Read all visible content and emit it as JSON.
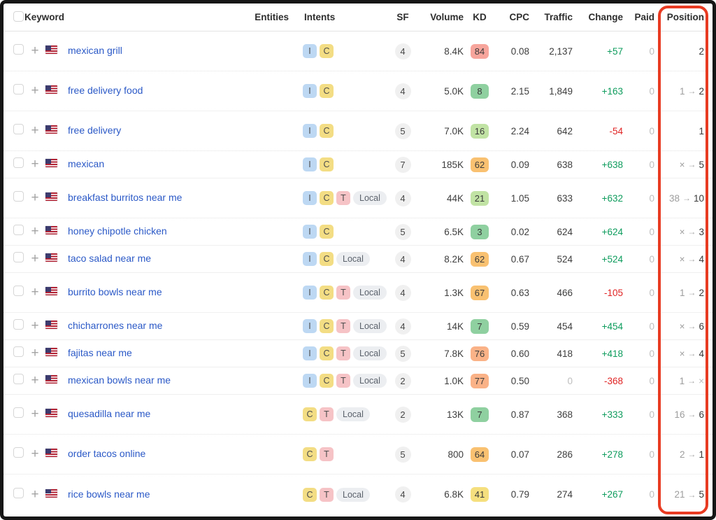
{
  "table": {
    "columns": {
      "keyword": "Keyword",
      "entities": "Entities",
      "intents": "Intents",
      "sf": "SF",
      "volume": "Volume",
      "kd": "KD",
      "cpc": "CPC",
      "traffic": "Traffic",
      "change": "Change",
      "paid": "Paid",
      "position": "Position"
    },
    "intent_classes": {
      "I": "intent-i",
      "C": "intent-c",
      "T": "intent-t",
      "Local": "intent-local"
    },
    "rows": [
      {
        "keyword": "mexican grill",
        "intents": [
          "I",
          "C"
        ],
        "sf": "4",
        "volume": "8.4K",
        "kd": "84",
        "kd_level": "red",
        "cpc": "0.08",
        "traffic": "2,137",
        "traffic_muted": false,
        "change": "+57",
        "change_dir": "up",
        "paid": "0",
        "pos_prev": null,
        "pos_new": "2",
        "pos_new_muted": false,
        "tall": true
      },
      {
        "keyword": "free delivery food",
        "intents": [
          "I",
          "C"
        ],
        "sf": "4",
        "volume": "5.0K",
        "kd": "8",
        "kd_level": "green",
        "cpc": "2.15",
        "traffic": "1,849",
        "traffic_muted": false,
        "change": "+163",
        "change_dir": "up",
        "paid": "0",
        "pos_prev": "1",
        "pos_new": "2",
        "pos_new_muted": false,
        "tall": true
      },
      {
        "keyword": "free delivery",
        "intents": [
          "I",
          "C"
        ],
        "sf": "5",
        "volume": "7.0K",
        "kd": "16",
        "kd_level": "light_green",
        "cpc": "2.24",
        "traffic": "642",
        "traffic_muted": false,
        "change": "-54",
        "change_dir": "down",
        "paid": "0",
        "pos_prev": null,
        "pos_new": "1",
        "pos_new_muted": false,
        "tall": true
      },
      {
        "keyword": "mexican",
        "intents": [
          "I",
          "C"
        ],
        "sf": "7",
        "volume": "185K",
        "kd": "62",
        "kd_level": "orange",
        "cpc": "0.09",
        "traffic": "638",
        "traffic_muted": false,
        "change": "+638",
        "change_dir": "up",
        "paid": "0",
        "pos_prev": "×",
        "pos_new": "5",
        "pos_new_muted": false,
        "tall": false
      },
      {
        "keyword": "breakfast burritos near me",
        "intents": [
          "I",
          "C",
          "T",
          "Local"
        ],
        "sf": "4",
        "volume": "44K",
        "kd": "21",
        "kd_level": "light_green",
        "cpc": "1.05",
        "traffic": "633",
        "traffic_muted": false,
        "change": "+632",
        "change_dir": "up",
        "paid": "0",
        "pos_prev": "38",
        "pos_new": "10",
        "pos_new_muted": false,
        "tall": true
      },
      {
        "keyword": "honey chipotle chicken",
        "intents": [
          "I",
          "C"
        ],
        "sf": "5",
        "volume": "6.5K",
        "kd": "3",
        "kd_level": "green",
        "cpc": "0.02",
        "traffic": "624",
        "traffic_muted": false,
        "change": "+624",
        "change_dir": "up",
        "paid": "0",
        "pos_prev": "×",
        "pos_new": "3",
        "pos_new_muted": false,
        "tall": false
      },
      {
        "keyword": "taco salad near me",
        "intents": [
          "I",
          "C",
          "Local"
        ],
        "sf": "4",
        "volume": "8.2K",
        "kd": "62",
        "kd_level": "orange",
        "cpc": "0.67",
        "traffic": "524",
        "traffic_muted": false,
        "change": "+524",
        "change_dir": "up",
        "paid": "0",
        "pos_prev": "×",
        "pos_new": "4",
        "pos_new_muted": false,
        "tall": false
      },
      {
        "keyword": "burrito bowls near me",
        "intents": [
          "I",
          "C",
          "T",
          "Local"
        ],
        "sf": "4",
        "volume": "1.3K",
        "kd": "67",
        "kd_level": "orange",
        "cpc": "0.63",
        "traffic": "466",
        "traffic_muted": false,
        "change": "-105",
        "change_dir": "down",
        "paid": "0",
        "pos_prev": "1",
        "pos_new": "2",
        "pos_new_muted": false,
        "tall": true
      },
      {
        "keyword": "chicharrones near me",
        "intents": [
          "I",
          "C",
          "T",
          "Local"
        ],
        "sf": "4",
        "volume": "14K",
        "kd": "7",
        "kd_level": "green",
        "cpc": "0.59",
        "traffic": "454",
        "traffic_muted": false,
        "change": "+454",
        "change_dir": "up",
        "paid": "0",
        "pos_prev": "×",
        "pos_new": "6",
        "pos_new_muted": false,
        "tall": false
      },
      {
        "keyword": "fajitas near me",
        "intents": [
          "I",
          "C",
          "T",
          "Local"
        ],
        "sf": "5",
        "volume": "7.8K",
        "kd": "76",
        "kd_level": "peach",
        "cpc": "0.60",
        "traffic": "418",
        "traffic_muted": false,
        "change": "+418",
        "change_dir": "up",
        "paid": "0",
        "pos_prev": "×",
        "pos_new": "4",
        "pos_new_muted": false,
        "tall": false
      },
      {
        "keyword": "mexican bowls near me",
        "intents": [
          "I",
          "C",
          "T",
          "Local"
        ],
        "sf": "2",
        "volume": "1.0K",
        "kd": "77",
        "kd_level": "peach",
        "cpc": "0.50",
        "traffic": "0",
        "traffic_muted": true,
        "change": "-368",
        "change_dir": "down",
        "paid": "0",
        "pos_prev": "1",
        "pos_new": "×",
        "pos_new_muted": true,
        "tall": false
      },
      {
        "keyword": "quesadilla near me",
        "intents": [
          "C",
          "T",
          "Local"
        ],
        "sf": "2",
        "volume": "13K",
        "kd": "7",
        "kd_level": "green",
        "cpc": "0.87",
        "traffic": "368",
        "traffic_muted": false,
        "change": "+333",
        "change_dir": "up",
        "paid": "0",
        "pos_prev": "16",
        "pos_new": "6",
        "pos_new_muted": false,
        "tall": true
      },
      {
        "keyword": "order tacos online",
        "intents": [
          "C",
          "T"
        ],
        "sf": "5",
        "volume": "800",
        "kd": "64",
        "kd_level": "orange",
        "cpc": "0.07",
        "traffic": "286",
        "traffic_muted": false,
        "change": "+278",
        "change_dir": "up",
        "paid": "0",
        "pos_prev": "2",
        "pos_new": "1",
        "pos_new_muted": false,
        "tall": true
      },
      {
        "keyword": "rice bowls near me",
        "intents": [
          "C",
          "T",
          "Local"
        ],
        "sf": "4",
        "volume": "6.8K",
        "kd": "41",
        "kd_level": "yellow",
        "cpc": "0.79",
        "traffic": "274",
        "traffic_muted": false,
        "change": "+267",
        "change_dir": "up",
        "paid": "0",
        "pos_prev": "21",
        "pos_new": "5",
        "pos_new_muted": false,
        "tall": true
      }
    ]
  },
  "colors": {
    "kd_levels": {
      "green": "#8fd0a0",
      "light_green": "#c1e3a4",
      "yellow": "#f5df7e",
      "orange": "#f9c171",
      "peach": "#fab287",
      "red": "#f7a59c"
    },
    "change_up": "#0e9c5d",
    "change_down": "#e02424",
    "keyword_link": "#2b59c7",
    "highlight_box": "#e83b22"
  },
  "icons": {
    "position_arrow": "→",
    "add_keyword": "+"
  }
}
